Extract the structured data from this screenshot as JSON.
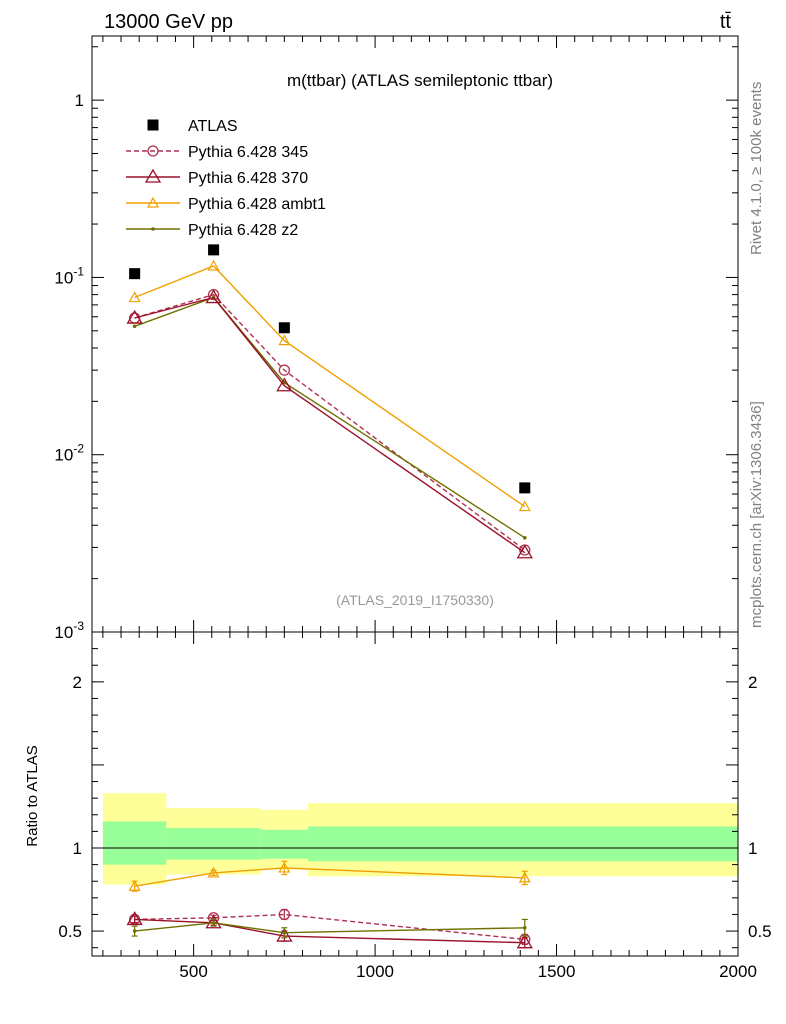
{
  "header": {
    "left": "13000 GeV pp",
    "right": "tt̄"
  },
  "side_labels": {
    "rivet": "Rivet 4.1.0, ≥ 100k events",
    "mcplots": "mcplots.cern.ch [arXiv:1306.3436]"
  },
  "colors": {
    "atlas": "#000000",
    "py345": "#b03050",
    "py370": "#9a1028",
    "ambt1": "#f0a000",
    "z2": "#707000",
    "band_outer": "#ffff99",
    "band_inner": "#99ff99",
    "watermark": "#999999"
  },
  "chart_data": [
    {
      "type": "scatter",
      "title": "m(ttbar) (ATLAS semileptonic ttbar)",
      "analysis_id": "(ATLAS_2019_I1750330)",
      "xlabel": "",
      "ylabel": "",
      "yscale": "log",
      "xlim": [
        220,
        2000
      ],
      "ylim": [
        0.001,
        2.3
      ],
      "ytick_labels": [
        "10^-3",
        "10^-2",
        "10^-1",
        "1"
      ],
      "legend_position": "top-left",
      "series": [
        {
          "name": "ATLAS",
          "style": "marker-square",
          "x": [
            337.5,
            555,
            750,
            1412.5
          ],
          "y": [
            0.105,
            0.143,
            0.052,
            0.0065
          ],
          "bins": [
            [
              250,
              425
            ],
            [
              425,
              685
            ],
            [
              685,
              815
            ],
            [
              815,
              2000
            ]
          ]
        },
        {
          "name": "Pythia 6.428 345",
          "style": "dashed-open-circle",
          "x": [
            337.5,
            555,
            750,
            1412.5
          ],
          "y": [
            0.059,
            0.08,
            0.03,
            0.0029
          ]
        },
        {
          "name": "Pythia 6.428 370",
          "style": "solid-open-triangle",
          "x": [
            337.5,
            555,
            750,
            1412.5
          ],
          "y": [
            0.059,
            0.077,
            0.0245,
            0.0028
          ]
        },
        {
          "name": "Pythia 6.428 ambt1",
          "style": "solid-open-triangle",
          "x": [
            337.5,
            555,
            750,
            1412.5
          ],
          "y": [
            0.077,
            0.116,
            0.044,
            0.0051
          ]
        },
        {
          "name": "Pythia 6.428 z2",
          "style": "solid-dot",
          "x": [
            337.5,
            555,
            750,
            1412.5
          ],
          "y": [
            0.053,
            0.077,
            0.0255,
            0.0034
          ]
        }
      ]
    },
    {
      "type": "line",
      "title": "",
      "xlabel": "",
      "ylabel": "Ratio to ATLAS",
      "xlim": [
        220,
        2000
      ],
      "ylim": [
        0.35,
        2.3
      ],
      "xtick_labels": [
        "500",
        "1000",
        "1500",
        "2000"
      ],
      "ytick_labels": [
        "0.5",
        "1",
        "2"
      ],
      "bands": [
        {
          "x": [
            250,
            425
          ],
          "outer": [
            0.78,
            1.33
          ],
          "inner": [
            0.9,
            1.16
          ]
        },
        {
          "x": [
            425,
            685
          ],
          "outer": [
            0.84,
            1.24
          ],
          "inner": [
            0.93,
            1.12
          ]
        },
        {
          "x": [
            685,
            815
          ],
          "outer": [
            0.87,
            1.23
          ],
          "inner": [
            0.935,
            1.11
          ]
        },
        {
          "x": [
            815,
            2000
          ],
          "outer": [
            0.83,
            1.27
          ],
          "inner": [
            0.92,
            1.13
          ]
        }
      ],
      "series": [
        {
          "name": "Pythia 6.428 345",
          "x": [
            337.5,
            555,
            750,
            1412.5
          ],
          "y": [
            0.57,
            0.58,
            0.6,
            0.45
          ],
          "err": [
            0.02,
            0.015,
            0.03,
            0.03
          ]
        },
        {
          "name": "Pythia 6.428 370",
          "x": [
            337.5,
            555,
            750,
            1412.5
          ],
          "y": [
            0.57,
            0.55,
            0.47,
            0.43
          ],
          "err": [
            0.02,
            0.015,
            0.03,
            0.03
          ]
        },
        {
          "name": "Pythia 6.428 ambt1",
          "x": [
            337.5,
            555,
            750,
            1412.5
          ],
          "y": [
            0.77,
            0.85,
            0.88,
            0.82
          ],
          "err": [
            0.03,
            0.015,
            0.04,
            0.04
          ]
        },
        {
          "name": "Pythia 6.428 z2",
          "x": [
            337.5,
            555,
            750,
            1412.5
          ],
          "y": [
            0.5,
            0.55,
            0.49,
            0.52
          ],
          "err": [
            0.03,
            0.02,
            0.03,
            0.05
          ]
        }
      ]
    }
  ]
}
